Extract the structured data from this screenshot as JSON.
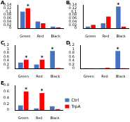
{
  "chart_data": [
    {
      "type": "bar",
      "title": "A",
      "categories": [
        "Green",
        "Red",
        "Black"
      ],
      "series": [
        {
          "color": "#4472c4",
          "values": [
            0.1,
            0.04,
            0.01
          ],
          "significance": [
            null,
            null,
            null
          ]
        },
        {
          "color": "#ff0000",
          "values": [
            0.12,
            0.03,
            0.005
          ],
          "significance": [
            "*",
            null,
            null
          ]
        }
      ],
      "ylim": [
        0,
        0.14
      ],
      "yticks": [
        0,
        0.02,
        0.04,
        0.06,
        0.08,
        0.1,
        0.12,
        0.14
      ],
      "grid": false
    },
    {
      "type": "bar",
      "title": "B",
      "categories": [
        "Green",
        "Red",
        "Black"
      ],
      "series": [
        {
          "color": "#4472c4",
          "values": [
            0.01,
            0.03,
            0.13
          ],
          "significance": [
            null,
            null,
            "*"
          ]
        },
        {
          "color": "#ff0000",
          "values": [
            0.02,
            0.07,
            0.01
          ],
          "significance": [
            null,
            null,
            null
          ]
        }
      ],
      "ylim": [
        0,
        0.14
      ],
      "yticks": [
        0,
        0.02,
        0.04,
        0.06,
        0.08,
        0.1,
        0.12,
        0.14
      ],
      "grid": false
    },
    {
      "type": "bar",
      "title": "C",
      "categories": [
        "Green",
        "Red",
        "Black"
      ],
      "series": [
        {
          "color": "#4472c4",
          "values": [
            0.3,
            0.2,
            0.9
          ],
          "significance": [
            null,
            null,
            "*"
          ]
        },
        {
          "color": "#ff0000",
          "values": [
            0.45,
            0.45,
            0.02
          ],
          "significance": [
            "*",
            "*",
            null
          ]
        }
      ],
      "ylim": [
        0,
        1.2
      ],
      "yticks": [
        0,
        0.2,
        0.4,
        0.6,
        0.8,
        1,
        1.2
      ],
      "grid": false
    },
    {
      "type": "bar",
      "title": "D",
      "categories": [
        "Green",
        "Red",
        "Black"
      ],
      "series": [
        {
          "color": "#4472c4",
          "values": [
            0.01,
            0.01,
            0.9
          ],
          "significance": [
            null,
            null,
            "*"
          ]
        },
        {
          "color": "#ff0000",
          "values": [
            0.005,
            0.03,
            0.01
          ],
          "significance": [
            null,
            null,
            null
          ]
        }
      ],
      "ylim": [
        0,
        1.2
      ],
      "yticks": [
        0,
        0.2,
        0.4,
        0.6,
        0.8,
        1,
        1.2
      ],
      "grid": false
    },
    {
      "type": "bar",
      "title": "E",
      "categories": [
        "Green",
        "Red",
        "Black"
      ],
      "series": [
        {
          "name": "Ctrl",
          "color": "#4472c4",
          "values": [
            0.15,
            0.05,
            0.12
          ],
          "significance": [
            null,
            null,
            null
          ]
        },
        {
          "name": "TrpA",
          "color": "#ff0000",
          "values": [
            0.6,
            0.55,
            0.03
          ],
          "significance": [
            "*",
            "*",
            null
          ]
        }
      ],
      "ylim": [
        0,
        0.8
      ],
      "yticks": [
        0,
        0.2,
        0.4,
        0.6,
        0.8
      ],
      "grid": false,
      "legend": "right"
    }
  ]
}
